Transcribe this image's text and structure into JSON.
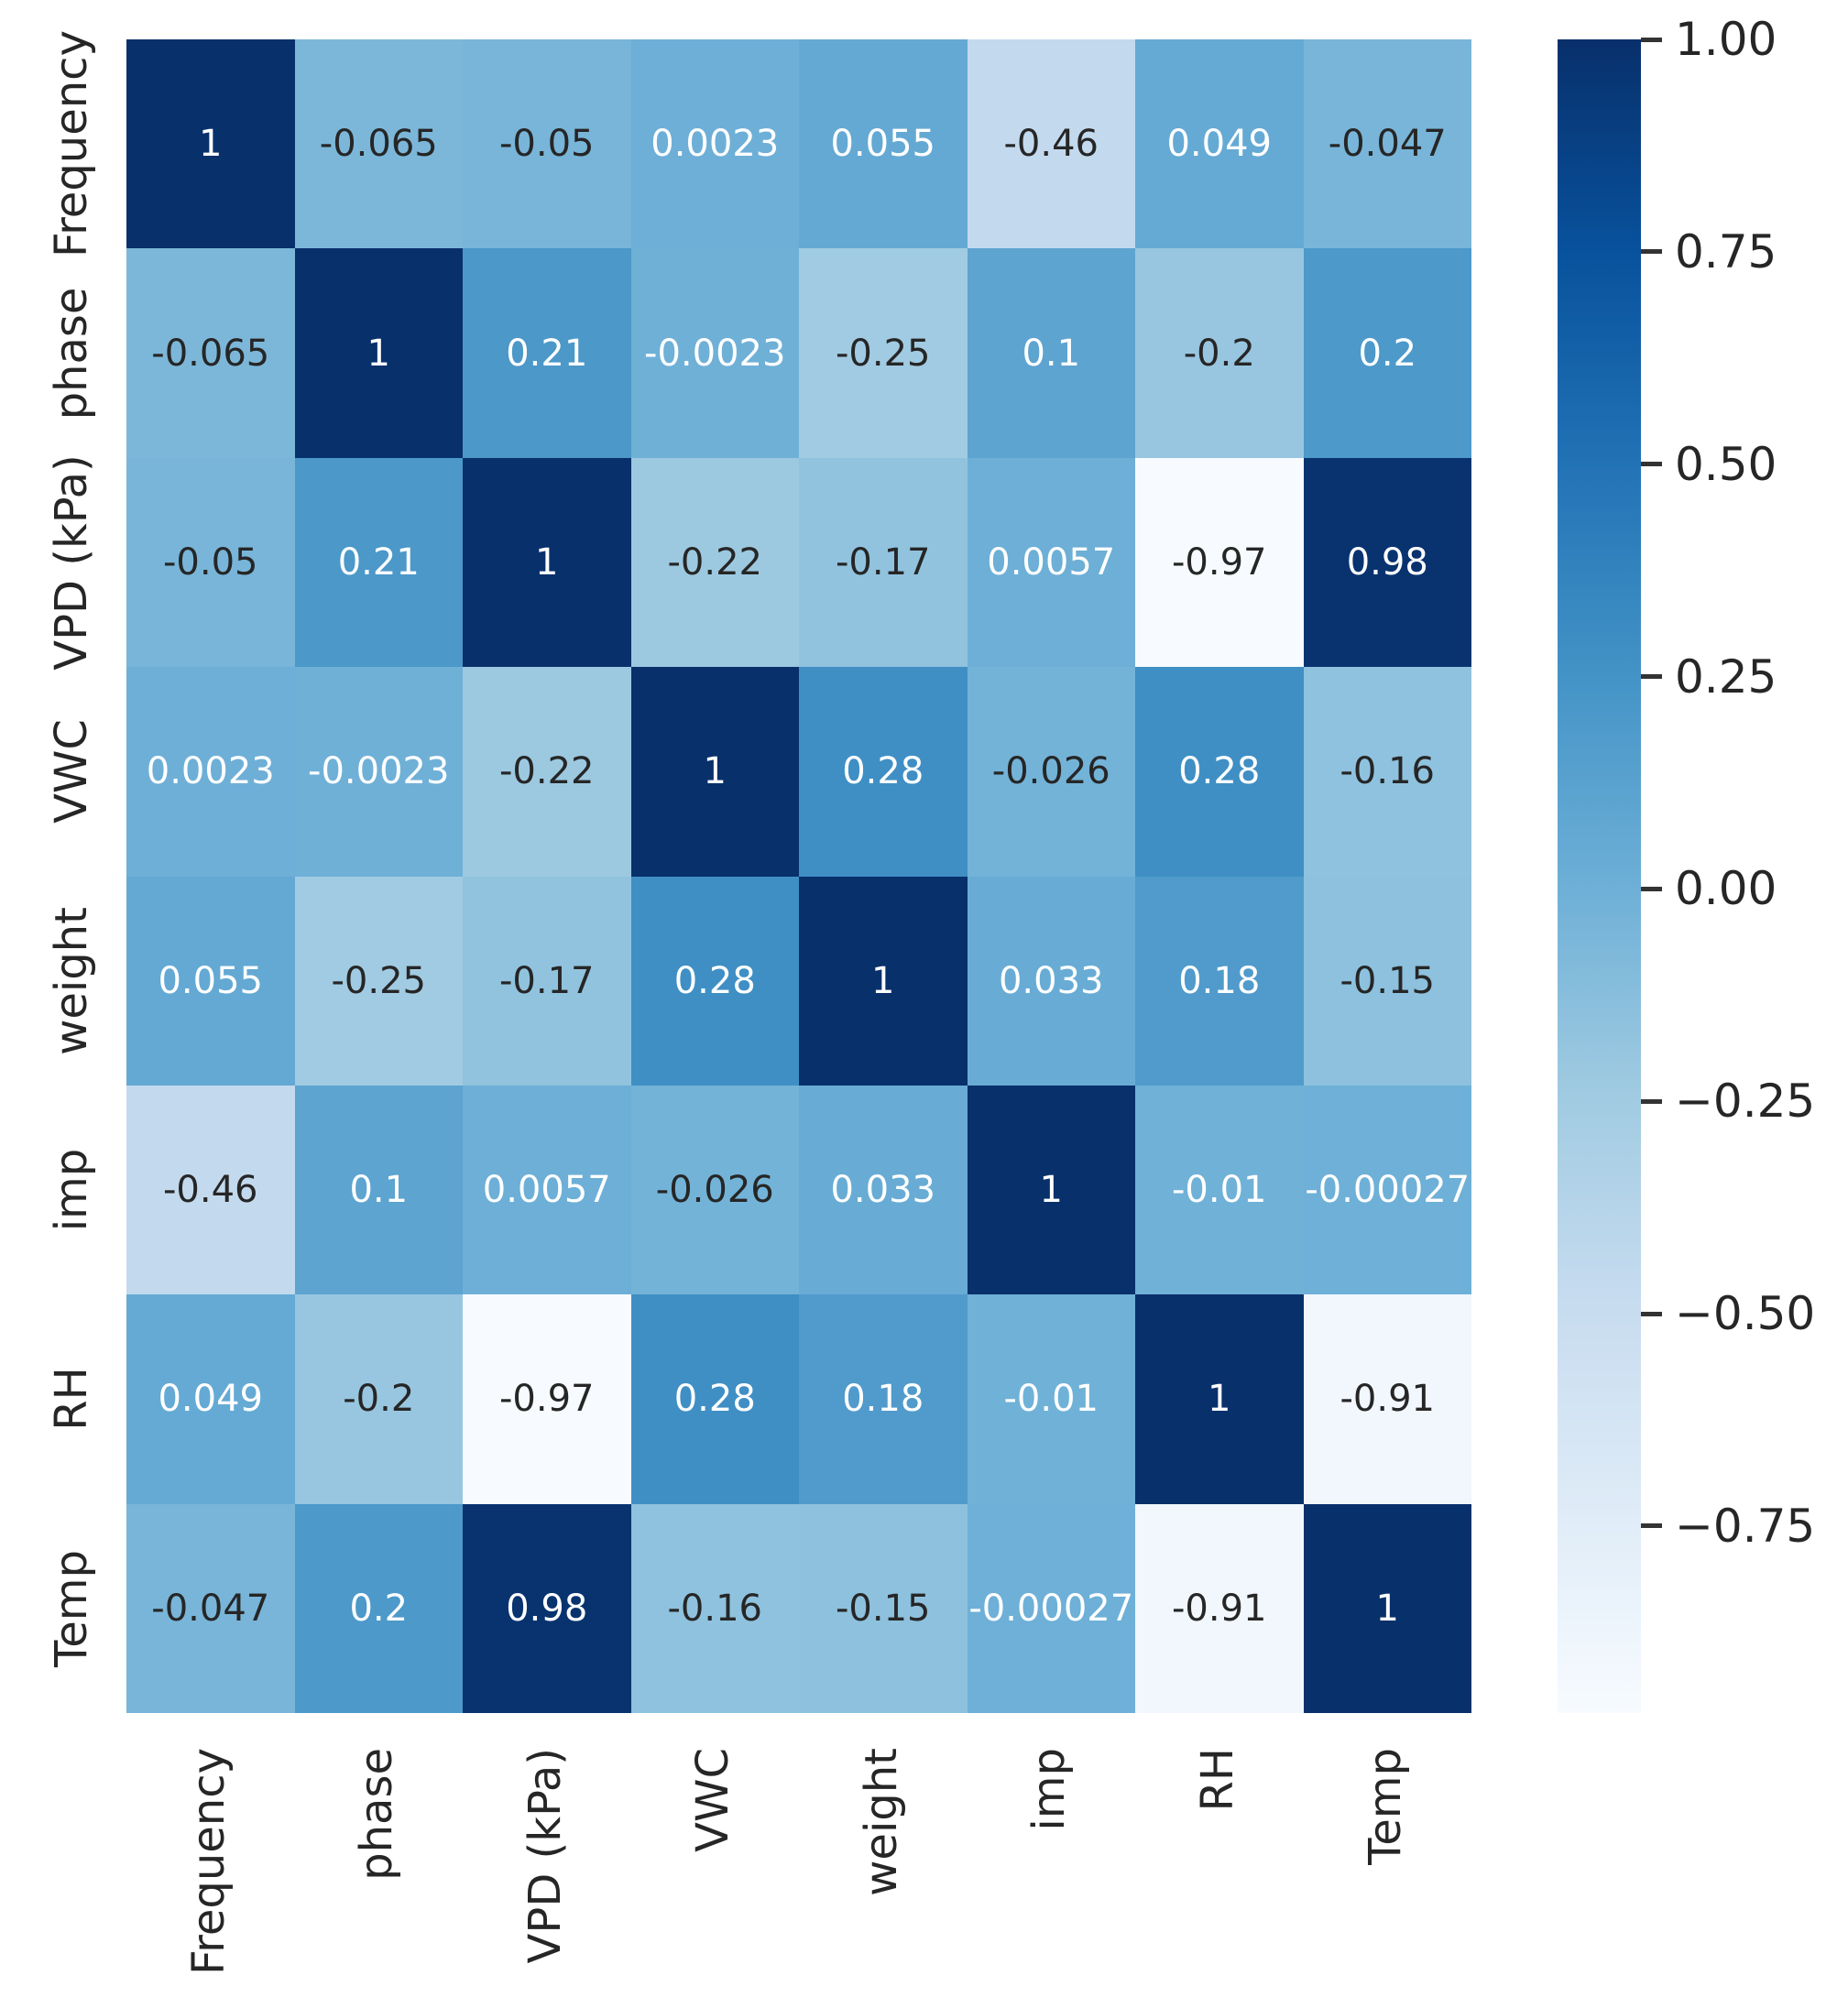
{
  "chart_data": {
    "type": "heatmap",
    "title": "",
    "variables": [
      "Frequency",
      "phase",
      "VPD (kPa)",
      "VWC",
      "weight",
      "imp",
      "RH",
      "Temp"
    ],
    "matrix": [
      [
        1,
        -0.065,
        -0.05,
        0.0023,
        0.055,
        -0.46,
        0.049,
        -0.047
      ],
      [
        -0.065,
        1,
        0.21,
        -0.0023,
        -0.25,
        0.1,
        -0.2,
        0.2
      ],
      [
        -0.05,
        0.21,
        1,
        -0.22,
        -0.17,
        0.0057,
        -0.97,
        0.98
      ],
      [
        0.0023,
        -0.0023,
        -0.22,
        1,
        0.28,
        -0.026,
        0.28,
        -0.16
      ],
      [
        0.055,
        -0.25,
        -0.17,
        0.28,
        1,
        0.033,
        0.18,
        -0.15
      ],
      [
        -0.46,
        0.1,
        0.0057,
        -0.026,
        0.033,
        1,
        -0.01,
        -0.00027
      ],
      [
        0.049,
        -0.2,
        -0.97,
        0.28,
        0.18,
        -0.01,
        1,
        -0.91
      ],
      [
        -0.047,
        0.2,
        0.98,
        -0.16,
        -0.15,
        -0.00027,
        -0.91,
        1
      ]
    ],
    "cell_labels": [
      [
        "1",
        "-0.065",
        "-0.05",
        "0.0023",
        "0.055",
        "-0.46",
        "0.049",
        "-0.047"
      ],
      [
        "-0.065",
        "1",
        "0.21",
        "-0.0023",
        "-0.25",
        "0.1",
        "-0.2",
        "0.2"
      ],
      [
        "-0.05",
        "0.21",
        "1",
        "-0.22",
        "-0.17",
        "0.0057",
        "-0.97",
        "0.98"
      ],
      [
        "0.0023",
        "-0.0023",
        "-0.22",
        "1",
        "0.28",
        "-0.026",
        "0.28",
        "-0.16"
      ],
      [
        "0.055",
        "-0.25",
        "-0.17",
        "0.28",
        "1",
        "0.033",
        "0.18",
        "-0.15"
      ],
      [
        "-0.46",
        "0.1",
        "0.0057",
        "-0.026",
        "0.033",
        "1",
        "-0.01",
        "-0.00027"
      ],
      [
        "0.049",
        "-0.2",
        "-0.97",
        "0.28",
        "0.18",
        "-0.01",
        "1",
        "-0.91"
      ],
      [
        "-0.047",
        "0.2",
        "0.98",
        "-0.16",
        "-0.15",
        "-0.00027",
        "-0.91",
        "1"
      ]
    ],
    "colormap": "Blues",
    "color_range": [
      -0.97,
      1.0
    ],
    "colorbar_ticks": [
      "1.00",
      "0.75",
      "0.50",
      "0.25",
      "0.00",
      "−0.25",
      "−0.50",
      "−0.75"
    ],
    "colorbar_position": "right",
    "x_tick_rotation": 90,
    "y_tick_rotation": 90,
    "grid": "off"
  },
  "colors": {
    "background": "#ffffff",
    "annotation_light": "#ffffff",
    "annotation_dark": "#262626",
    "tick_label": "#262626",
    "tick_mark": "#333333",
    "blues_colormap_stops": [
      "#f7fbff",
      "#deebf7",
      "#c6dbef",
      "#9ecae1",
      "#6baed6",
      "#4292c6",
      "#2171b5",
      "#08519c",
      "#08306b"
    ]
  }
}
